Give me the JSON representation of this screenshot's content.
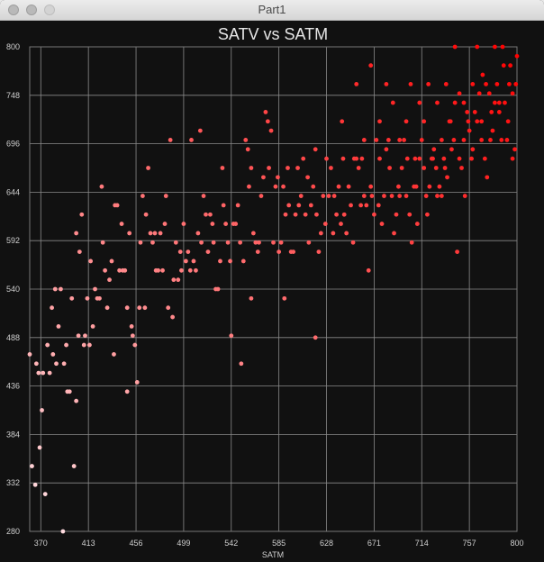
{
  "window": {
    "title": "Part1"
  },
  "chart_data": {
    "type": "scatter",
    "title": "SATV vs SATM",
    "xlabel": "SATM",
    "ylabel": "",
    "xlim": [
      360,
      800
    ],
    "ylim": [
      280,
      800
    ],
    "x_ticks": [
      "370",
      "413",
      "456",
      "499",
      "542",
      "585",
      "628",
      "671",
      "714",
      "757",
      "800"
    ],
    "y_ticks": [
      "800",
      "748",
      "696",
      "644",
      "592",
      "540",
      "488",
      "436",
      "384",
      "332",
      "280"
    ],
    "grid": true,
    "legend": "none",
    "color_low": "#ffe6ea",
    "color_high": "#ff0000",
    "points": [
      [
        360,
        470
      ],
      [
        362,
        350
      ],
      [
        365,
        330
      ],
      [
        366,
        460
      ],
      [
        368,
        450
      ],
      [
        369,
        370
      ],
      [
        371,
        410
      ],
      [
        372,
        450
      ],
      [
        374,
        320
      ],
      [
        376,
        480
      ],
      [
        378,
        450
      ],
      [
        380,
        520
      ],
      [
        381,
        470
      ],
      [
        383,
        540
      ],
      [
        384,
        460
      ],
      [
        386,
        500
      ],
      [
        388,
        540
      ],
      [
        390,
        280
      ],
      [
        391,
        460
      ],
      [
        393,
        480
      ],
      [
        394,
        430
      ],
      [
        396,
        430
      ],
      [
        398,
        530
      ],
      [
        400,
        350
      ],
      [
        402,
        600
      ],
      [
        404,
        490
      ],
      [
        405,
        580
      ],
      [
        407,
        620
      ],
      [
        409,
        480
      ],
      [
        410,
        490
      ],
      [
        412,
        530
      ],
      [
        414,
        480
      ],
      [
        415,
        570
      ],
      [
        417,
        500
      ],
      [
        419,
        540
      ],
      [
        421,
        530
      ],
      [
        423,
        530
      ],
      [
        425,
        650
      ],
      [
        426,
        590
      ],
      [
        428,
        560
      ],
      [
        430,
        520
      ],
      [
        432,
        550
      ],
      [
        434,
        570
      ],
      [
        436,
        470
      ],
      [
        437,
        630
      ],
      [
        439,
        630
      ],
      [
        441,
        560
      ],
      [
        443,
        610
      ],
      [
        444,
        560
      ],
      [
        446,
        560
      ],
      [
        448,
        520
      ],
      [
        450,
        600
      ],
      [
        452,
        500
      ],
      [
        453,
        490
      ],
      [
        455,
        480
      ],
      [
        457,
        440
      ],
      [
        459,
        520
      ],
      [
        460,
        590
      ],
      [
        462,
        640
      ],
      [
        464,
        520
      ],
      [
        465,
        620
      ],
      [
        467,
        670
      ],
      [
        469,
        600
      ],
      [
        471,
        590
      ],
      [
        473,
        600
      ],
      [
        474,
        560
      ],
      [
        476,
        560
      ],
      [
        478,
        600
      ],
      [
        480,
        560
      ],
      [
        482,
        610
      ],
      [
        483,
        640
      ],
      [
        485,
        520
      ],
      [
        487,
        700
      ],
      [
        489,
        510
      ],
      [
        490,
        550
      ],
      [
        492,
        590
      ],
      [
        494,
        550
      ],
      [
        496,
        580
      ],
      [
        497,
        560
      ],
      [
        499,
        610
      ],
      [
        501,
        570
      ],
      [
        503,
        580
      ],
      [
        505,
        560
      ],
      [
        506,
        700
      ],
      [
        508,
        570
      ],
      [
        510,
        560
      ],
      [
        512,
        600
      ],
      [
        514,
        710
      ],
      [
        515,
        590
      ],
      [
        517,
        640
      ],
      [
        519,
        620
      ],
      [
        521,
        580
      ],
      [
        523,
        620
      ],
      [
        525,
        610
      ],
      [
        526,
        590
      ],
      [
        528,
        540
      ],
      [
        530,
        540
      ],
      [
        532,
        570
      ],
      [
        534,
        670
      ],
      [
        535,
        630
      ],
      [
        537,
        610
      ],
      [
        539,
        590
      ],
      [
        541,
        570
      ],
      [
        542,
        490
      ],
      [
        544,
        610
      ],
      [
        546,
        610
      ],
      [
        548,
        630
      ],
      [
        550,
        590
      ],
      [
        551,
        460
      ],
      [
        553,
        570
      ],
      [
        555,
        700
      ],
      [
        557,
        690
      ],
      [
        558,
        650
      ],
      [
        560,
        670
      ],
      [
        562,
        600
      ],
      [
        564,
        590
      ],
      [
        566,
        580
      ],
      [
        567,
        590
      ],
      [
        569,
        640
      ],
      [
        571,
        660
      ],
      [
        573,
        730
      ],
      [
        575,
        720
      ],
      [
        576,
        670
      ],
      [
        578,
        710
      ],
      [
        580,
        590
      ],
      [
        582,
        650
      ],
      [
        584,
        660
      ],
      [
        585,
        580
      ],
      [
        587,
        590
      ],
      [
        589,
        650
      ],
      [
        591,
        620
      ],
      [
        593,
        670
      ],
      [
        594,
        630
      ],
      [
        596,
        580
      ],
      [
        598,
        580
      ],
      [
        600,
        620
      ],
      [
        602,
        670
      ],
      [
        603,
        630
      ],
      [
        605,
        640
      ],
      [
        607,
        680
      ],
      [
        609,
        620
      ],
      [
        611,
        660
      ],
      [
        612,
        590
      ],
      [
        614,
        630
      ],
      [
        616,
        650
      ],
      [
        618,
        690
      ],
      [
        619,
        620
      ],
      [
        621,
        580
      ],
      [
        623,
        600
      ],
      [
        625,
        640
      ],
      [
        627,
        610
      ],
      [
        628,
        680
      ],
      [
        630,
        640
      ],
      [
        632,
        670
      ],
      [
        634,
        600
      ],
      [
        635,
        640
      ],
      [
        637,
        620
      ],
      [
        639,
        650
      ],
      [
        641,
        610
      ],
      [
        643,
        680
      ],
      [
        644,
        620
      ],
      [
        646,
        600
      ],
      [
        648,
        650
      ],
      [
        650,
        630
      ],
      [
        652,
        590
      ],
      [
        653,
        680
      ],
      [
        655,
        680
      ],
      [
        657,
        670
      ],
      [
        659,
        630
      ],
      [
        660,
        680
      ],
      [
        662,
        640
      ],
      [
        664,
        630
      ],
      [
        666,
        560
      ],
      [
        668,
        650
      ],
      [
        669,
        640
      ],
      [
        671,
        620
      ],
      [
        673,
        700
      ],
      [
        675,
        630
      ],
      [
        676,
        680
      ],
      [
        678,
        610
      ],
      [
        680,
        640
      ],
      [
        682,
        690
      ],
      [
        684,
        700
      ],
      [
        685,
        670
      ],
      [
        687,
        640
      ],
      [
        689,
        600
      ],
      [
        691,
        620
      ],
      [
        693,
        650
      ],
      [
        694,
        640
      ],
      [
        696,
        670
      ],
      [
        698,
        700
      ],
      [
        700,
        640
      ],
      [
        701,
        680
      ],
      [
        703,
        620
      ],
      [
        705,
        590
      ],
      [
        707,
        650
      ],
      [
        709,
        650
      ],
      [
        710,
        610
      ],
      [
        712,
        680
      ],
      [
        714,
        700
      ],
      [
        716,
        670
      ],
      [
        718,
        640
      ],
      [
        719,
        620
      ],
      [
        721,
        650
      ],
      [
        723,
        680
      ],
      [
        725,
        690
      ],
      [
        727,
        670
      ],
      [
        728,
        640
      ],
      [
        730,
        650
      ],
      [
        732,
        640
      ],
      [
        734,
        680
      ],
      [
        735,
        670
      ],
      [
        737,
        660
      ],
      [
        739,
        720
      ],
      [
        741,
        690
      ],
      [
        743,
        700
      ],
      [
        744,
        740
      ],
      [
        746,
        580
      ],
      [
        748,
        750
      ],
      [
        750,
        670
      ],
      [
        752,
        700
      ],
      [
        753,
        640
      ],
      [
        755,
        730
      ],
      [
        757,
        710
      ],
      [
        759,
        680
      ],
      [
        760,
        690
      ],
      [
        762,
        730
      ],
      [
        764,
        720
      ],
      [
        766,
        750
      ],
      [
        768,
        700
      ],
      [
        769,
        770
      ],
      [
        771,
        680
      ],
      [
        773,
        660
      ],
      [
        775,
        750
      ],
      [
        777,
        730
      ],
      [
        778,
        710
      ],
      [
        780,
        740
      ],
      [
        782,
        760
      ],
      [
        784,
        730
      ],
      [
        786,
        700
      ],
      [
        787,
        800
      ],
      [
        789,
        740
      ],
      [
        791,
        700
      ],
      [
        793,
        760
      ],
      [
        794,
        780
      ],
      [
        796,
        750
      ],
      [
        798,
        690
      ],
      [
        800,
        790
      ],
      [
        642,
        720
      ],
      [
        655,
        760
      ],
      [
        662,
        700
      ],
      [
        668,
        780
      ],
      [
        676,
        720
      ],
      [
        682,
        760
      ],
      [
        688,
        740
      ],
      [
        694,
        700
      ],
      [
        700,
        720
      ],
      [
        704,
        760
      ],
      [
        708,
        680
      ],
      [
        712,
        740
      ],
      [
        716,
        720
      ],
      [
        720,
        760
      ],
      [
        724,
        680
      ],
      [
        728,
        740
      ],
      [
        732,
        700
      ],
      [
        736,
        760
      ],
      [
        740,
        720
      ],
      [
        744,
        800
      ],
      [
        748,
        680
      ],
      [
        752,
        740
      ],
      [
        756,
        720
      ],
      [
        760,
        760
      ],
      [
        764,
        800
      ],
      [
        768,
        720
      ],
      [
        772,
        760
      ],
      [
        776,
        700
      ],
      [
        780,
        800
      ],
      [
        784,
        740
      ],
      [
        788,
        780
      ],
      [
        792,
        720
      ],
      [
        796,
        680
      ],
      [
        799,
        760
      ],
      [
        618,
        488
      ],
      [
        590,
        530
      ],
      [
        560,
        530
      ],
      [
        448,
        430
      ],
      [
        402,
        420
      ]
    ]
  }
}
